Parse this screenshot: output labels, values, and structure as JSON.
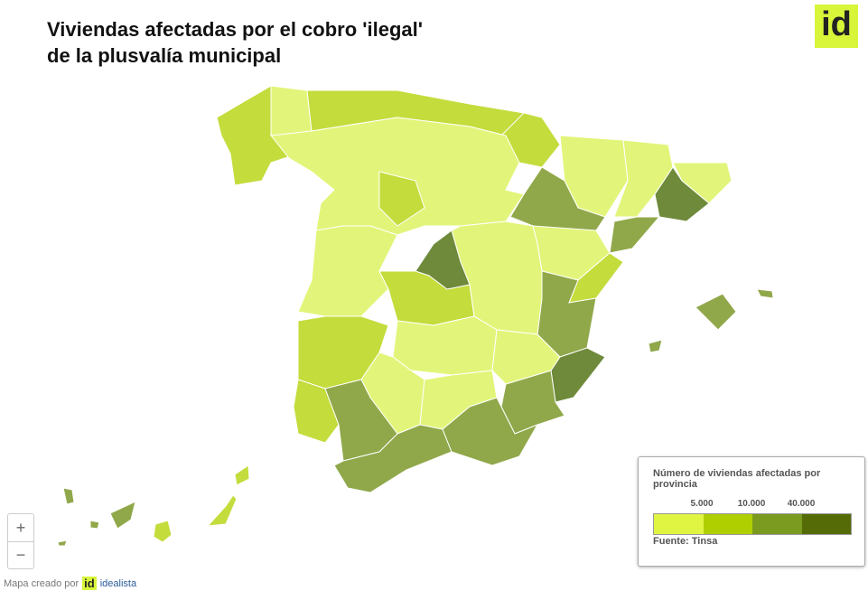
{
  "header": {
    "title": [
      "Viviendas afectadas por el cobro 'ilegal'",
      "de la plusvalía municipal"
    ],
    "logo": "id"
  },
  "legend": {
    "title": "Número de viviendas afectadas por provincia",
    "ticks": [
      "5.000",
      "10.000",
      "40.000"
    ],
    "source": "Fuente: Tinsa"
  },
  "zoom": {
    "in": "+",
    "out": "−"
  },
  "footer": {
    "credit": "Mapa creado por",
    "brand": "idealista",
    "logo": "id"
  }
}
